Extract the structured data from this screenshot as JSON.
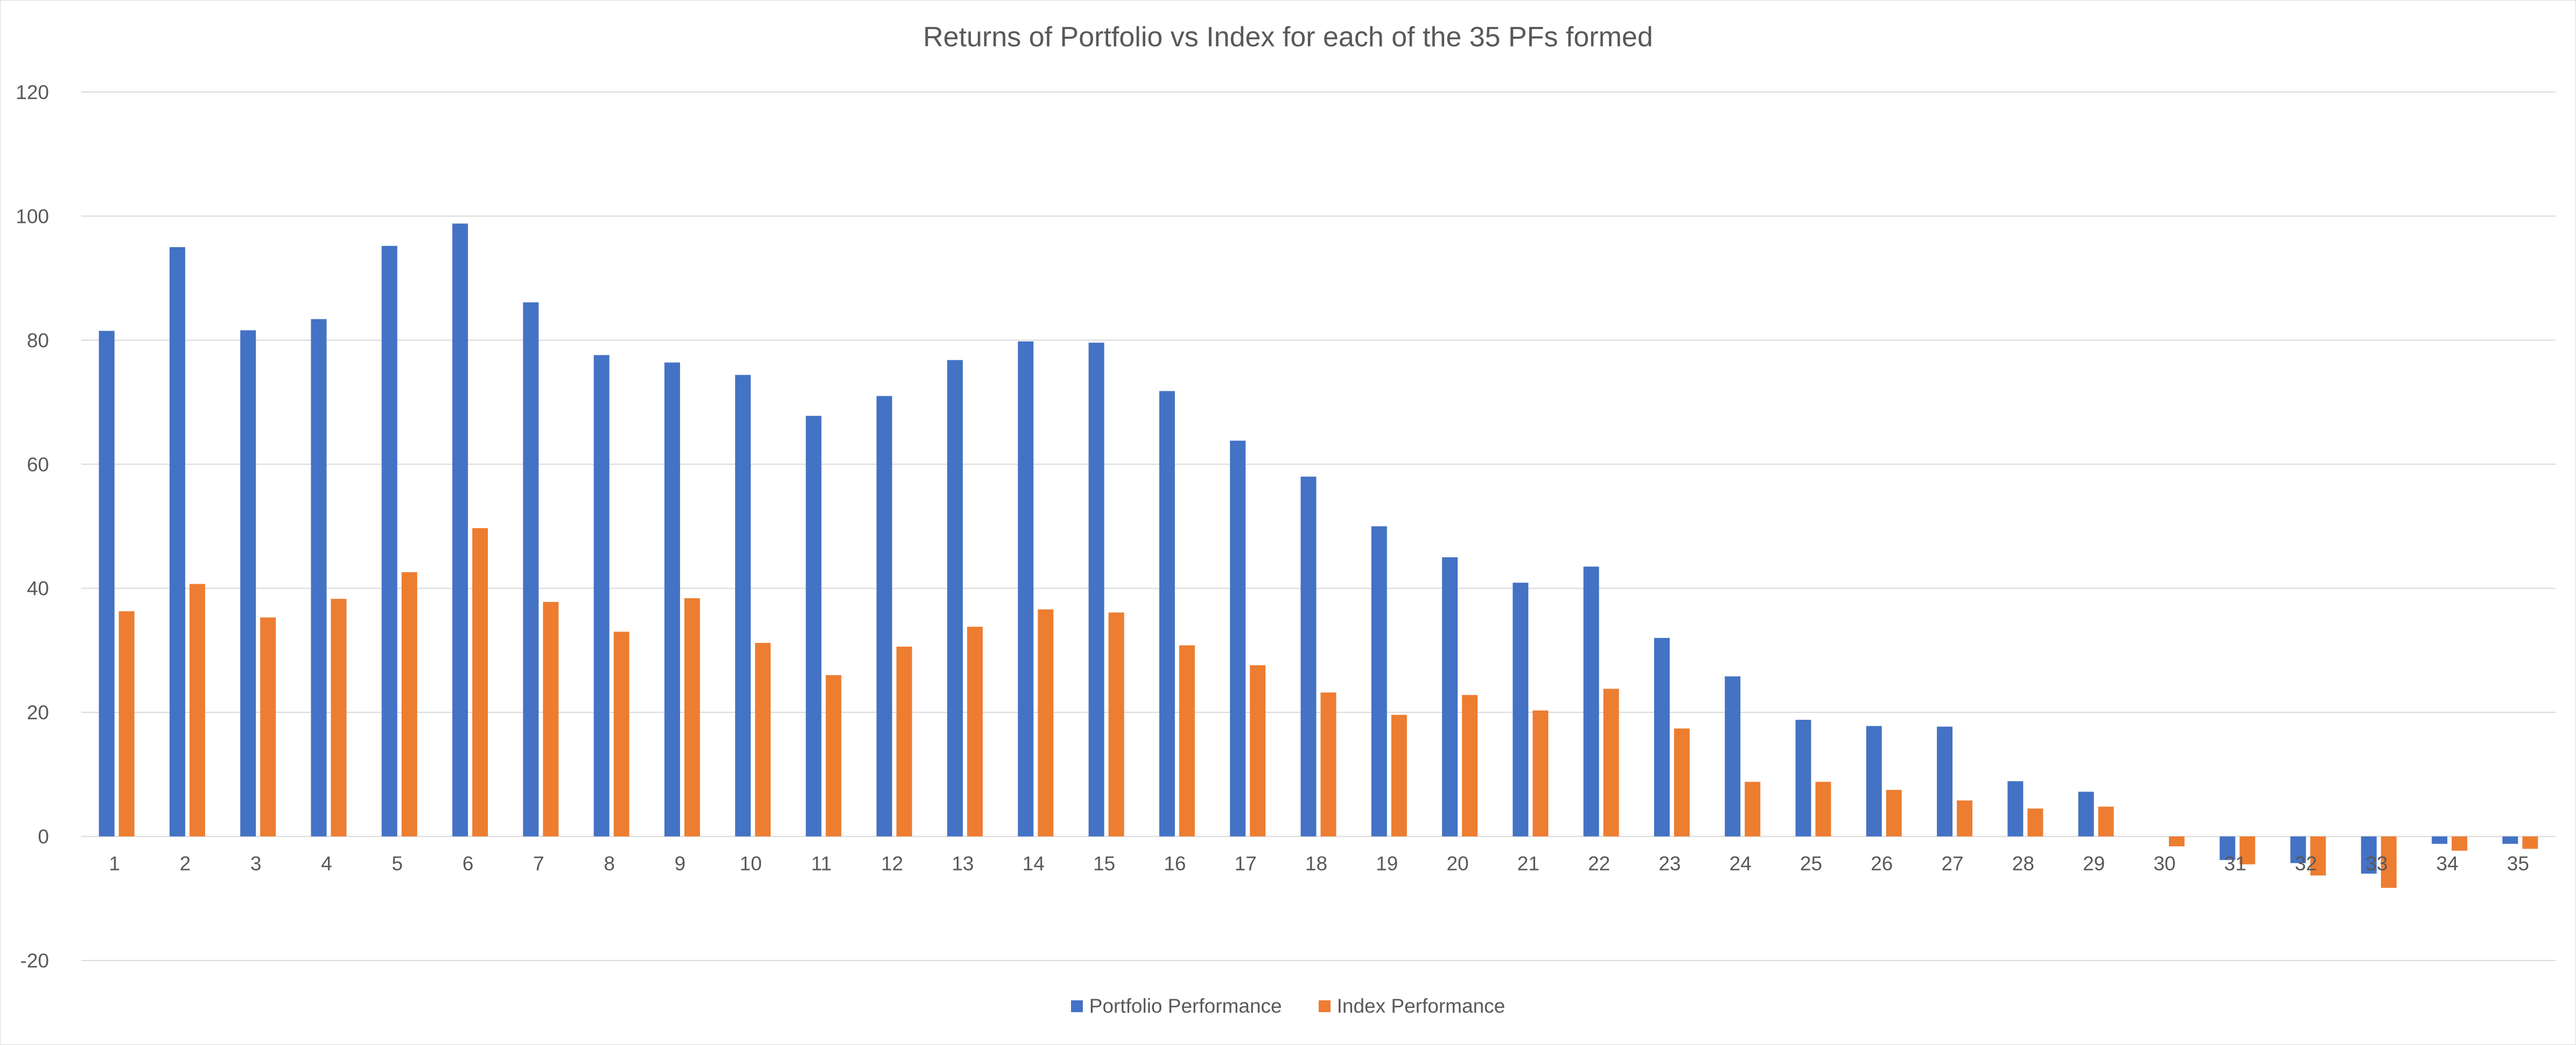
{
  "chart_data": {
    "type": "bar",
    "title": "Returns of Portfolio vs Index for each of the 35 PFs formed",
    "xlabel": "",
    "ylabel": "",
    "categories": [
      "1",
      "2",
      "3",
      "4",
      "5",
      "6",
      "7",
      "8",
      "9",
      "10",
      "11",
      "12",
      "13",
      "14",
      "15",
      "16",
      "17",
      "18",
      "19",
      "20",
      "21",
      "22",
      "23",
      "24",
      "25",
      "26",
      "27",
      "28",
      "29",
      "30",
      "31",
      "32",
      "33",
      "34",
      "35"
    ],
    "series": [
      {
        "name": "Portfolio Performance",
        "color": "#4472C4",
        "values": [
          81.5,
          95.0,
          81.6,
          83.4,
          95.2,
          98.8,
          86.1,
          77.6,
          76.4,
          74.4,
          67.8,
          71.0,
          76.8,
          79.8,
          79.6,
          71.8,
          63.8,
          58.0,
          50.0,
          45.0,
          40.9,
          43.5,
          32.0,
          25.8,
          18.8,
          17.8,
          17.7,
          8.9,
          7.2,
          0.0,
          -3.8,
          -4.3,
          -6.0,
          -1.2,
          -1.2
        ]
      },
      {
        "name": "Index Performance",
        "color": "#ED7D31",
        "values": [
          36.3,
          40.7,
          35.3,
          38.3,
          42.6,
          49.7,
          37.8,
          33.0,
          38.4,
          31.2,
          26.0,
          30.6,
          33.8,
          36.6,
          36.1,
          30.8,
          27.6,
          23.2,
          19.6,
          22.8,
          20.3,
          23.8,
          17.4,
          8.8,
          8.8,
          7.5,
          5.8,
          4.5,
          4.8,
          -1.6,
          -4.5,
          -6.3,
          -8.3,
          -2.3,
          -2.0
        ]
      }
    ],
    "ylim": [
      -20,
      120
    ],
    "yticks": [
      -20,
      0,
      20,
      40,
      60,
      80,
      100,
      120
    ],
    "grid": true,
    "legend_position": "bottom"
  }
}
